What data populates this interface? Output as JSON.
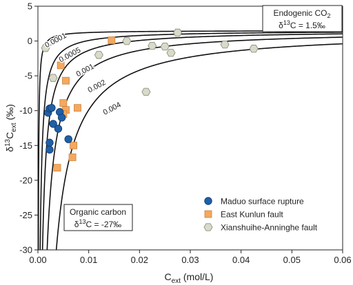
{
  "chart_data": {
    "type": "scatter",
    "xlabel": "C",
    "xlabel_sub": "ext",
    "xlabel_unit": " (mol/L)",
    "ylabel": "δ",
    "ylabel_sup": "13",
    "ylabel_mid": "C",
    "ylabel_sub": "ext",
    "ylabel_unit": " (‰)",
    "xlim": [
      0.0,
      0.06
    ],
    "ylim": [
      -30,
      5
    ],
    "x_ticks": [
      0.0,
      0.01,
      0.02,
      0.03,
      0.04,
      0.05,
      0.06
    ],
    "x_tick_labels": [
      "0.00",
      "0.01",
      "0.02",
      "0.03",
      "0.04",
      "0.05",
      "0.06"
    ],
    "y_ticks": [
      5,
      0,
      -5,
      -10,
      -15,
      -20,
      -25,
      -30
    ],
    "y_tick_labels": [
      "5",
      "0",
      "-5",
      "-10",
      "-15",
      "-20",
      "-25",
      "-30"
    ],
    "grid": false,
    "mixing_model": {
      "endmember_high": 1.5,
      "endmember_low": -27,
      "curves": [
        {
          "label": "0.0001",
          "c0": 0.0001,
          "label_x": 0.0037,
          "label_y": -0.2
        },
        {
          "label": "0.0005",
          "c0": 0.0005,
          "label_x": 0.0065,
          "label_y": -2.3
        },
        {
          "label": "0.001",
          "c0": 0.001,
          "label_x": 0.0095,
          "label_y": -4.5
        },
        {
          "label": "0.002",
          "c0": 0.002,
          "label_x": 0.0118,
          "label_y": -6.8
        },
        {
          "label": "0.004",
          "c0": 0.004,
          "label_x": 0.0148,
          "label_y": -10.0
        }
      ]
    },
    "annotations": {
      "endogenic_title": "Endogenic CO",
      "endogenic_title_sub": "2",
      "endogenic_delta_prefix": "δ",
      "endogenic_delta_sup": "13",
      "endogenic_delta_value": "C = 1.5‰",
      "organic_title": "Organic carbon",
      "organic_delta_prefix": "δ",
      "organic_delta_sup": "13",
      "organic_delta_value": "C = -27‰"
    },
    "legend_position": "bottom-right",
    "series": [
      {
        "name": "Maduo surface rupture",
        "marker": "circle",
        "color": "#1f5fa8",
        "points": [
          [
            0.002,
            -10.3
          ],
          [
            0.0023,
            -9.7
          ],
          [
            0.0027,
            -9.6
          ],
          [
            0.003,
            -11.9
          ],
          [
            0.004,
            -12.6
          ],
          [
            0.0023,
            -14.6
          ],
          [
            0.0023,
            -15.6
          ],
          [
            0.0043,
            -10.2
          ],
          [
            0.006,
            -14.1
          ],
          [
            0.0047,
            -11.0
          ]
        ]
      },
      {
        "name": "East Kunlun fault",
        "marker": "square",
        "color": "#f5a85e",
        "points": [
          [
            0.0045,
            -3.5
          ],
          [
            0.0055,
            -5.7
          ],
          [
            0.005,
            -8.9
          ],
          [
            0.0055,
            -9.9
          ],
          [
            0.005,
            -10.5
          ],
          [
            0.0078,
            -9.6
          ],
          [
            0.007,
            -15.0
          ],
          [
            0.0068,
            -16.7
          ],
          [
            0.0038,
            -18.2
          ],
          [
            0.0145,
            0.1
          ]
        ]
      },
      {
        "name": "Xianshuihe-Anninghe fault",
        "marker": "hexagon",
        "color": "#d9dac9",
        "points": [
          [
            0.0015,
            -1.0
          ],
          [
            0.003,
            -5.3
          ],
          [
            0.012,
            -2.0
          ],
          [
            0.0175,
            0.0
          ],
          [
            0.0225,
            -0.7
          ],
          [
            0.025,
            -0.8
          ],
          [
            0.0262,
            -1.7
          ],
          [
            0.0275,
            1.2
          ],
          [
            0.0368,
            -0.5
          ],
          [
            0.0425,
            -1.1
          ],
          [
            0.0213,
            -7.3
          ]
        ]
      }
    ]
  }
}
